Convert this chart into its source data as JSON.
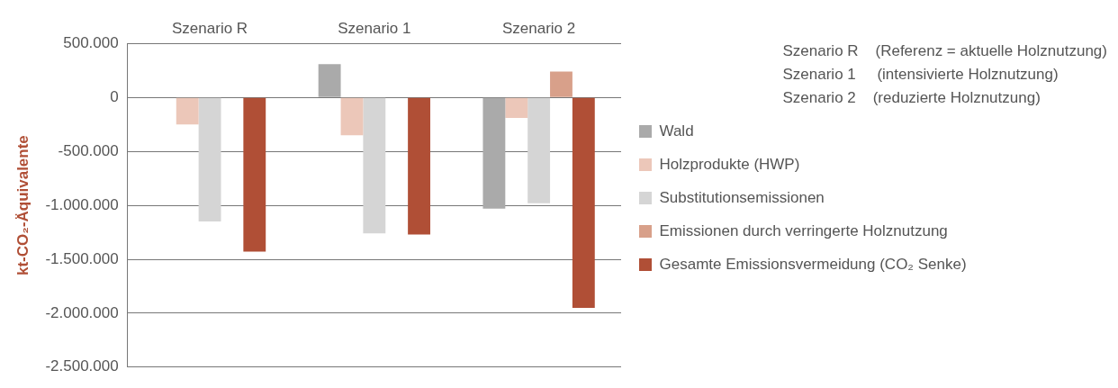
{
  "chart_data": {
    "type": "bar",
    "ylabel": "kt-CO₂-Äquivalente",
    "categories": [
      "Szenario R",
      "Szenario 1",
      "Szenario 2"
    ],
    "series": [
      {
        "name": "Wald",
        "color": "#aaaaaa",
        "values": [
          null,
          310000,
          -1030000
        ]
      },
      {
        "name": "Holzprodukte (HWP)",
        "color": "#ecc7b9",
        "values": [
          -250000,
          -350000,
          -190000
        ]
      },
      {
        "name": "Substitutionsemissionen",
        "color": "#d5d5d5",
        "values": [
          -1150000,
          -1260000,
          -980000
        ]
      },
      {
        "name": "Emissionen durch verringerte Holznutzung",
        "color": "#d8a08a",
        "values": [
          null,
          null,
          240000
        ]
      },
      {
        "name": "Gesamte Emissionsvermeidung (CO₂ Senke)",
        "color": "#b04f36",
        "values": [
          -1430000,
          -1270000,
          -1950000
        ]
      }
    ],
    "ylim": [
      -2500000,
      500000
    ],
    "yticks": [
      {
        "value": -2500000,
        "label": "-2.500.000"
      },
      {
        "value": -2000000,
        "label": "-2.000.000"
      },
      {
        "value": -1500000,
        "label": "-1.500.000"
      },
      {
        "value": -1000000,
        "label": "-1.000.000"
      },
      {
        "value": -500000,
        "label": "-500.000"
      },
      0,
      {
        "value": 500000,
        "label": "500.000"
      }
    ],
    "grid": "y",
    "legend": "right",
    "annotations": [
      "Szenario R    (Referenz = aktuelle Holznutzung)",
      "Szenario 1     (intensivierte Holznutzung)",
      "Szenario 2    (reduzierte Holznutzung)"
    ]
  }
}
